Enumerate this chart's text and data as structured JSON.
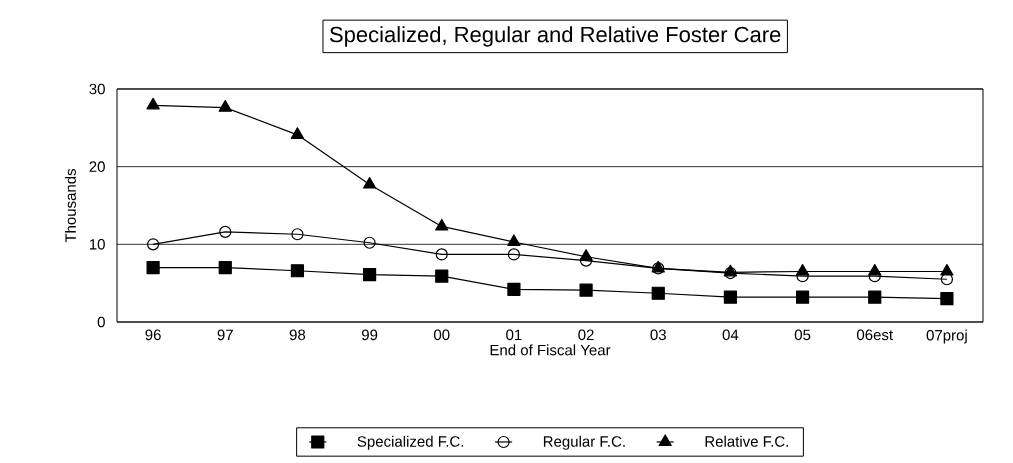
{
  "chart_data": {
    "type": "line",
    "title": "Specialized, Regular and Relative Foster Care",
    "xlabel": "End of Fiscal Year",
    "ylabel": "Thousands",
    "categories": [
      "96",
      "97",
      "98",
      "99",
      "00",
      "01",
      "02",
      "03",
      "04",
      "05",
      "06est",
      "07proj"
    ],
    "series": [
      {
        "name": "Specialized F.C.",
        "color": "#000000",
        "marker": "square",
        "values": [
          7.0,
          7.0,
          6.6,
          6.1,
          5.9,
          4.2,
          4.1,
          3.7,
          3.2,
          3.2,
          3.2,
          3.0
        ]
      },
      {
        "name": "Regular F.C.",
        "color": "#000000",
        "marker": "circle",
        "values": [
          10.0,
          11.6,
          11.3,
          10.2,
          8.7,
          8.7,
          7.9,
          6.9,
          6.3,
          5.9,
          5.9,
          5.5
        ]
      },
      {
        "name": "Relative F.C.",
        "color": "#000000",
        "marker": "triangle",
        "values": [
          27.9,
          27.6,
          24.1,
          17.7,
          12.3,
          10.3,
          8.4,
          6.9,
          6.4,
          6.5,
          6.5,
          6.5
        ]
      }
    ],
    "ylim": [
      0,
      30
    ],
    "yticks": [
      0,
      10,
      20,
      30
    ],
    "grid": "y",
    "legend": "bottom",
    "line_style": "solid"
  }
}
